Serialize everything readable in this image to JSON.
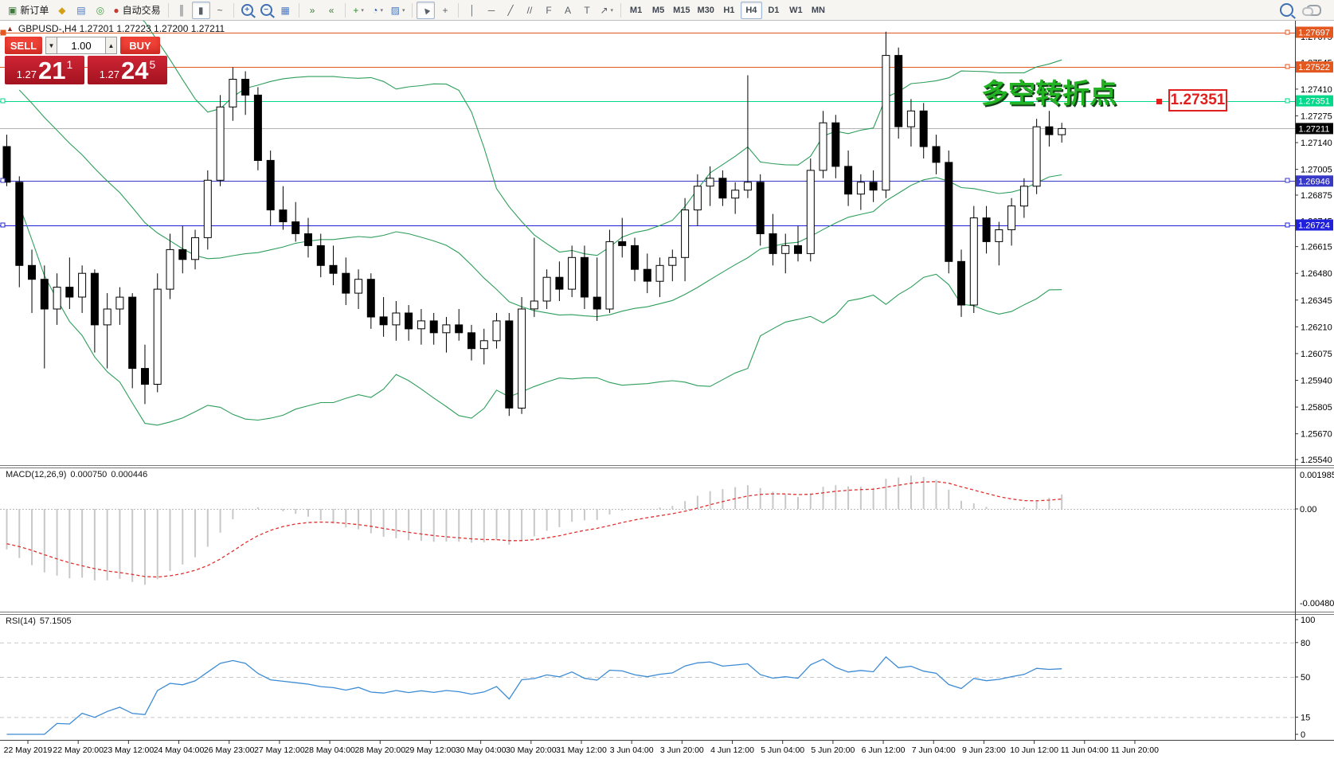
{
  "toolbar": {
    "caret_glyph": "▾",
    "buttons": [
      {
        "name": "new-order-button",
        "glyph": "▣",
        "color": "#3c7d3c",
        "label": "新订单"
      },
      {
        "name": "market-watch-button",
        "glyph": "◆",
        "color": "#d4a017"
      },
      {
        "name": "data-window-button",
        "glyph": "▤",
        "color": "#4a78c4"
      },
      {
        "name": "navigator-button",
        "glyph": "◎",
        "color": "#3fa33f"
      },
      {
        "name": "autotrading-button",
        "glyph": "●",
        "color": "#c23b2e",
        "label": "自动交易"
      },
      {
        "sep": true
      },
      {
        "name": "bar-chart-button",
        "glyph": "║"
      },
      {
        "name": "candlestick-chart-button",
        "glyph": "▮",
        "pressed": true
      },
      {
        "name": "line-chart-button",
        "glyph": "~"
      },
      {
        "sep": true
      },
      {
        "name": "zoom-in-button",
        "glyph": "+",
        "magnifier": true
      },
      {
        "name": "zoom-out-button",
        "glyph": "−",
        "magnifier": true
      },
      {
        "name": "tile-windows-button",
        "glyph": "▦",
        "color": "#4a78c4"
      },
      {
        "sep": true
      },
      {
        "name": "auto-scroll-button",
        "glyph": "»",
        "color": "#3c7d3c"
      },
      {
        "name": "chart-shift-button",
        "glyph": "«",
        "color": "#3c7d3c"
      },
      {
        "sep": true
      },
      {
        "name": "indicators-button",
        "glyph": "+",
        "color": "#2e8b2e",
        "caret": true
      },
      {
        "name": "periods-button",
        "glyph": "◔",
        "color": "#2a5db0",
        "caret": true
      },
      {
        "name": "templates-button",
        "glyph": "▨",
        "color": "#4a78c4",
        "caret": true
      },
      {
        "sep": true
      },
      {
        "name": "cursor-button",
        "glyph": "▲",
        "rot": -40,
        "pressed": true
      },
      {
        "name": "crosshair-button",
        "glyph": "+"
      },
      {
        "sep": true
      },
      {
        "name": "vertical-line-button",
        "glyph": "│"
      },
      {
        "name": "horizontal-line-button",
        "glyph": "─"
      },
      {
        "name": "trendline-button",
        "glyph": "╱"
      },
      {
        "name": "channel-button",
        "glyph": "//"
      },
      {
        "name": "fibonacci-button",
        "glyph": "F"
      },
      {
        "name": "text-button",
        "glyph": "A"
      },
      {
        "name": "text-label-button",
        "glyph": "T"
      },
      {
        "name": "arrows-button",
        "glyph": "↗",
        "caret": true
      },
      {
        "sep": true
      }
    ],
    "timeframes": [
      "M1",
      "M5",
      "M15",
      "M30",
      "H1",
      "H4",
      "D1",
      "W1",
      "MN"
    ],
    "active_timeframe": "H4"
  },
  "chart_header": {
    "marker": "▲",
    "title": "GBPUSD-,H4  1.27201 1.27223 1.27200 1.27211"
  },
  "one_click": {
    "sell_label": "SELL",
    "buy_label": "BUY",
    "volume": "1.00",
    "step_down_glyph": "▼",
    "step_up_glyph": "▲",
    "sell_price": {
      "prefix": "1.27",
      "big": "21",
      "sup": "1"
    },
    "buy_price": {
      "prefix": "1.27",
      "big": "24",
      "sup": "5"
    }
  },
  "annotation": {
    "text": "多空转折点",
    "color": "#22b422"
  },
  "callout": {
    "text": "1.27351",
    "color": "#e21f1f"
  },
  "indicators": {
    "macd": {
      "name": "MACD(12,26,9)",
      "value": "0.000750",
      "signal": "0.000446",
      "axis_top": "0.001985",
      "axis_zero": "0.00",
      "axis_bottom": "-0.004803"
    },
    "rsi": {
      "name": "RSI(14)",
      "value": "57.1505",
      "axis_labels": [
        100,
        80,
        50,
        15,
        0
      ],
      "levels": [
        80,
        50,
        15
      ]
    }
  },
  "chart_data": {
    "type": "candlestick",
    "symbol": "GBPUSD-",
    "timeframe": "H4",
    "last_price": "1.27211",
    "last_price_value": 1.27211,
    "price_ticks": [
      1.27675,
      1.27545,
      1.2741,
      1.27275,
      1.2714,
      1.27005,
      1.26875,
      1.26745,
      1.26615,
      1.2648,
      1.26345,
      1.2621,
      1.26075,
      1.2594,
      1.25805,
      1.2567,
      1.2554
    ],
    "time_labels": [
      "22 May 2019",
      "22 May 20:00",
      "23 May 12:00",
      "24 May 04:00",
      "26 May 23:00",
      "27 May 12:00",
      "28 May 04:00",
      "28 May 20:00",
      "29 May 12:00",
      "30 May 04:00",
      "30 May 20:00",
      "31 May 12:00",
      "3 Jun 04:00",
      "3 Jun 20:00",
      "4 Jun 12:00",
      "5 Jun 04:00",
      "5 Jun 20:00",
      "6 Jun 12:00",
      "7 Jun 04:00",
      "9 Jun 23:00",
      "10 Jun 12:00",
      "11 Jun 04:00",
      "11 Jun 20:00"
    ],
    "hlines": [
      {
        "price": 1.27697,
        "color": "#e4571e",
        "label": "1.27697",
        "left_handle": "filled"
      },
      {
        "price": 1.27522,
        "color": "#e4571e",
        "label": "1.27522"
      },
      {
        "price": 1.27351,
        "color": "#00d98a",
        "label": "1.27351",
        "selected": true
      },
      {
        "price": 1.26946,
        "color": "#3737c8",
        "label": "1.26946",
        "left_handle": "open"
      },
      {
        "price": 1.26724,
        "color": "#2020dd",
        "label": "1.26724",
        "left_handle": "open"
      }
    ],
    "bollinger": {
      "period": 20,
      "deviation": 2,
      "color": "#2e9e5b"
    },
    "colors": {
      "bull": "#ffffff",
      "bear": "#000000",
      "wick": "#000000",
      "macd_hist": "#c8c8c8",
      "macd_signal": "#e03030",
      "rsi_line": "#3d8bd4",
      "last_price_line": "#b4b4b4",
      "level_dash": "#c8c8c8"
    },
    "prehistory_closes": [
      1.282,
      1.2816,
      1.2813,
      1.2809,
      1.2806,
      1.2802,
      1.2799,
      1.2795,
      1.2792,
      1.2788,
      1.2785,
      1.2781,
      1.2778,
      1.2774,
      1.2771,
      1.2767,
      1.2764,
      1.276,
      1.2757,
      1.2753,
      1.275,
      1.2746,
      1.2743,
      1.2739,
      1.2736,
      1.2732,
      1.2729,
      1.2725,
      1.2722,
      1.2719
    ],
    "candles": [
      [
        1.2712,
        1.2718,
        1.2692,
        1.2694
      ],
      [
        1.2694,
        1.2697,
        1.2641,
        1.2652
      ],
      [
        1.2652,
        1.266,
        1.2628,
        1.2645
      ],
      [
        1.2645,
        1.2652,
        1.26,
        1.263
      ],
      [
        1.263,
        1.2648,
        1.2622,
        1.2641
      ],
      [
        1.2641,
        1.2656,
        1.263,
        1.2636
      ],
      [
        1.2636,
        1.2652,
        1.2628,
        1.2648
      ],
      [
        1.2648,
        1.265,
        1.2608,
        1.2622
      ],
      [
        1.2622,
        1.2638,
        1.26,
        1.263
      ],
      [
        1.263,
        1.2641,
        1.2622,
        1.2636
      ],
      [
        1.2636,
        1.2638,
        1.259,
        1.26
      ],
      [
        1.26,
        1.2612,
        1.2582,
        1.2592
      ],
      [
        1.2592,
        1.2648,
        1.2588,
        1.264
      ],
      [
        1.264,
        1.2668,
        1.2635,
        1.266
      ],
      [
        1.266,
        1.2672,
        1.2648,
        1.2655
      ],
      [
        1.2655,
        1.267,
        1.265,
        1.2666
      ],
      [
        1.2666,
        1.27,
        1.266,
        1.2695
      ],
      [
        1.2695,
        1.2738,
        1.2692,
        1.2732
      ],
      [
        1.2732,
        1.2752,
        1.2725,
        1.2746
      ],
      [
        1.2746,
        1.275,
        1.2728,
        1.2738
      ],
      [
        1.2738,
        1.2742,
        1.27,
        1.2705
      ],
      [
        1.2705,
        1.271,
        1.2672,
        1.268
      ],
      [
        1.268,
        1.2692,
        1.267,
        1.2674
      ],
      [
        1.2674,
        1.2684,
        1.2664,
        1.2668
      ],
      [
        1.2668,
        1.2676,
        1.2656,
        1.2662
      ],
      [
        1.2662,
        1.2668,
        1.2646,
        1.2652
      ],
      [
        1.2652,
        1.2662,
        1.2642,
        1.2648
      ],
      [
        1.2648,
        1.2656,
        1.2632,
        1.2638
      ],
      [
        1.2638,
        1.265,
        1.263,
        1.2645
      ],
      [
        1.2645,
        1.2648,
        1.262,
        1.2626
      ],
      [
        1.2626,
        1.2636,
        1.2616,
        1.2622
      ],
      [
        1.2622,
        1.2634,
        1.2614,
        1.2628
      ],
      [
        1.2628,
        1.2632,
        1.2614,
        1.262
      ],
      [
        1.262,
        1.263,
        1.2612,
        1.2624
      ],
      [
        1.2624,
        1.2628,
        1.2612,
        1.2618
      ],
      [
        1.2618,
        1.2626,
        1.2608,
        1.2622
      ],
      [
        1.2622,
        1.263,
        1.2614,
        1.2618
      ],
      [
        1.2618,
        1.2622,
        1.2604,
        1.261
      ],
      [
        1.261,
        1.262,
        1.2602,
        1.2614
      ],
      [
        1.2614,
        1.2628,
        1.261,
        1.2624
      ],
      [
        1.2624,
        1.2628,
        1.2576,
        1.258
      ],
      [
        1.258,
        1.2636,
        1.2577,
        1.263
      ],
      [
        1.263,
        1.2666,
        1.2626,
        1.2634
      ],
      [
        1.2634,
        1.265,
        1.263,
        1.2646
      ],
      [
        1.2646,
        1.2654,
        1.2634,
        1.264
      ],
      [
        1.264,
        1.2662,
        1.2636,
        1.2656
      ],
      [
        1.2656,
        1.2662,
        1.263,
        1.2636
      ],
      [
        1.2636,
        1.2656,
        1.2624,
        1.263
      ],
      [
        1.263,
        1.267,
        1.2628,
        1.2664
      ],
      [
        1.2664,
        1.2676,
        1.2656,
        1.2662
      ],
      [
        1.2662,
        1.2666,
        1.2644,
        1.265
      ],
      [
        1.265,
        1.2658,
        1.2638,
        1.2644
      ],
      [
        1.2644,
        1.2656,
        1.2636,
        1.2652
      ],
      [
        1.2652,
        1.266,
        1.2644,
        1.2656
      ],
      [
        1.2656,
        1.2686,
        1.2644,
        1.268
      ],
      [
        1.268,
        1.2698,
        1.2672,
        1.2692
      ],
      [
        1.2692,
        1.2702,
        1.2682,
        1.2696
      ],
      [
        1.2696,
        1.27,
        1.2682,
        1.2686
      ],
      [
        1.2686,
        1.2694,
        1.2678,
        1.269
      ],
      [
        1.269,
        1.2748,
        1.2686,
        1.2694
      ],
      [
        1.2694,
        1.2698,
        1.2662,
        1.2668
      ],
      [
        1.2668,
        1.2678,
        1.2652,
        1.2658
      ],
      [
        1.2658,
        1.2668,
        1.2648,
        1.2662
      ],
      [
        1.2662,
        1.2672,
        1.2654,
        1.2658
      ],
      [
        1.2658,
        1.2706,
        1.2654,
        1.27
      ],
      [
        1.27,
        1.273,
        1.2696,
        1.2724
      ],
      [
        1.2724,
        1.2728,
        1.2696,
        1.2702
      ],
      [
        1.2702,
        1.271,
        1.2682,
        1.2688
      ],
      [
        1.2688,
        1.2698,
        1.268,
        1.2694
      ],
      [
        1.2694,
        1.27,
        1.2684,
        1.269
      ],
      [
        1.269,
        1.277,
        1.2686,
        1.2758
      ],
      [
        1.2758,
        1.2762,
        1.2716,
        1.2722
      ],
      [
        1.2722,
        1.2736,
        1.2712,
        1.273
      ],
      [
        1.273,
        1.2734,
        1.2706,
        1.2712
      ],
      [
        1.2712,
        1.2718,
        1.2698,
        1.2704
      ],
      [
        1.2704,
        1.271,
        1.2648,
        1.2654
      ],
      [
        1.2654,
        1.266,
        1.2626,
        1.2632
      ],
      [
        1.2632,
        1.2682,
        1.2628,
        1.2676
      ],
      [
        1.2676,
        1.2682,
        1.2658,
        1.2664
      ],
      [
        1.2664,
        1.2674,
        1.2652,
        1.267
      ],
      [
        1.267,
        1.2686,
        1.2662,
        1.2682
      ],
      [
        1.2682,
        1.2696,
        1.2676,
        1.2692
      ],
      [
        1.2692,
        1.2726,
        1.2688,
        1.2722
      ],
      [
        1.2722,
        1.273,
        1.2712,
        1.2718
      ],
      [
        1.2718,
        1.2724,
        1.2714,
        1.27211
      ]
    ]
  }
}
